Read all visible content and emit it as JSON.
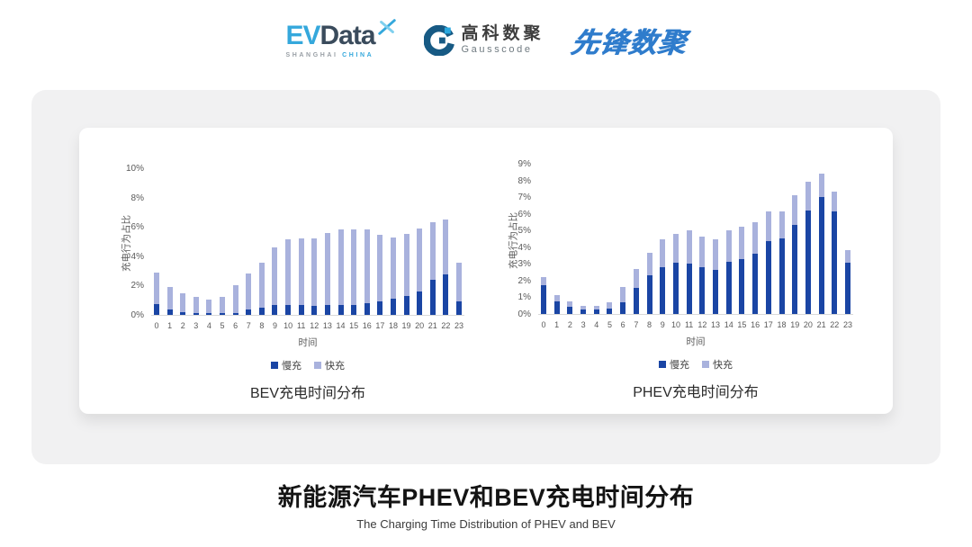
{
  "header": {
    "evdata": {
      "ev": "EV",
      "word": "Data",
      "sub_left": "SHANGHAI",
      "sub_right": "CHINA"
    },
    "gausscode": {
      "cn": "高科数聚",
      "en": "Gausscode"
    },
    "pioneer": {
      "text": "先锋数聚"
    }
  },
  "footer": {
    "title": "新能源汽车PHEV和BEV充电时间分布",
    "subtitle": "The Charging Time Distribution of PHEV and BEV"
  },
  "colors": {
    "slow": "#1a45a4",
    "fast": "#a9b2dd",
    "axis_text": "#595959",
    "axis_line": "#d9d9d9",
    "panel_bg": "#f1f1f2",
    "evdata_blue": "#35a8dc",
    "evdata_navy": "#3a4b5c",
    "gauss_navy": "#175a84",
    "pioneer_blue": "#2f7ccc"
  },
  "chart_data": [
    {
      "type": "bar",
      "stacked": true,
      "title": "BEV充电时间分布",
      "xlabel": "时间",
      "ylabel": "充电行为占比",
      "ylim": [
        0,
        10
      ],
      "ytick_step": 2,
      "ytick_suffix": "%",
      "grid": false,
      "legend_position": "bottom",
      "categories": [
        "0",
        "1",
        "2",
        "3",
        "4",
        "5",
        "6",
        "7",
        "8",
        "9",
        "10",
        "11",
        "12",
        "13",
        "14",
        "15",
        "16",
        "17",
        "18",
        "19",
        "20",
        "21",
        "22",
        "23"
      ],
      "series": [
        {
          "name": "慢充",
          "color": "#1a45a4",
          "values": [
            0.75,
            0.35,
            0.2,
            0.1,
            0.1,
            0.1,
            0.15,
            0.35,
            0.5,
            0.7,
            0.65,
            0.7,
            0.6,
            0.65,
            0.7,
            0.7,
            0.8,
            0.95,
            1.1,
            1.3,
            1.6,
            2.4,
            2.75,
            0.95
          ]
        },
        {
          "name": "快充",
          "color": "#a9b2dd",
          "values": [
            2.15,
            1.55,
            1.3,
            1.1,
            0.95,
            1.1,
            1.85,
            2.45,
            3.05,
            3.9,
            4.5,
            4.5,
            4.6,
            4.95,
            5.1,
            5.1,
            5.0,
            4.5,
            4.2,
            4.25,
            4.3,
            3.9,
            3.75,
            2.6
          ]
        }
      ]
    },
    {
      "type": "bar",
      "stacked": true,
      "title": "PHEV充电时间分布",
      "xlabel": "时间",
      "ylabel": "充电行为占比",
      "ylim": [
        0,
        9
      ],
      "ytick_step": 1,
      "ytick_suffix": "%",
      "grid": false,
      "legend_position": "bottom",
      "categories": [
        "0",
        "1",
        "2",
        "3",
        "4",
        "5",
        "6",
        "7",
        "8",
        "9",
        "10",
        "11",
        "12",
        "13",
        "14",
        "15",
        "16",
        "17",
        "18",
        "19",
        "20",
        "21",
        "22",
        "23"
      ],
      "series": [
        {
          "name": "慢充",
          "color": "#1a45a4",
          "values": [
            1.75,
            0.75,
            0.45,
            0.25,
            0.25,
            0.3,
            0.7,
            1.55,
            2.3,
            2.8,
            3.05,
            3.0,
            2.8,
            2.65,
            3.1,
            3.3,
            3.6,
            4.35,
            4.55,
            5.35,
            6.2,
            7.0,
            6.15,
            3.05
          ]
        },
        {
          "name": "快充",
          "color": "#a9b2dd",
          "values": [
            0.45,
            0.4,
            0.3,
            0.25,
            0.25,
            0.4,
            0.9,
            1.15,
            1.35,
            1.7,
            1.75,
            2.0,
            1.85,
            1.8,
            1.9,
            1.95,
            1.9,
            1.8,
            1.6,
            1.75,
            1.7,
            1.4,
            1.2,
            0.8
          ]
        }
      ]
    }
  ]
}
